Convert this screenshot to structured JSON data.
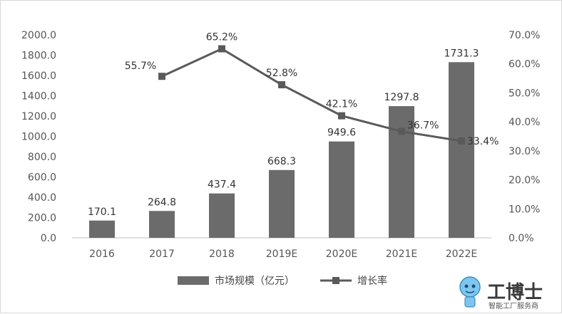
{
  "chart_data": {
    "type": "bar",
    "categories": [
      "2016",
      "2017",
      "2018",
      "2019E",
      "2020E",
      "2021E",
      "2022E"
    ],
    "series": [
      {
        "name": "市场规模（亿元）",
        "type": "bar",
        "axis": "left",
        "values": [
          170.1,
          264.8,
          437.4,
          668.3,
          949.6,
          1297.8,
          1731.3
        ],
        "labels": [
          "170.1",
          "264.8",
          "437.4",
          "668.3",
          "949.6",
          "1297.8",
          "1731.3"
        ],
        "color": "#6b6b6b"
      },
      {
        "name": "增长率",
        "type": "line",
        "axis": "right",
        "values": [
          null,
          55.7,
          65.2,
          52.8,
          42.1,
          36.7,
          33.4
        ],
        "labels": [
          "",
          "55.7%",
          "65.2%",
          "52.8%",
          "42.1%",
          "36.7%",
          "33.4%"
        ],
        "color": "#5a5a5a"
      }
    ],
    "y_left": {
      "ylim": [
        0,
        2000
      ],
      "ticks": [
        0,
        200,
        400,
        600,
        800,
        1000,
        1200,
        1400,
        1600,
        1800,
        2000
      ],
      "tick_labels": [
        "0.0",
        "200.0",
        "400.0",
        "600.0",
        "800.0",
        "1000.0",
        "1200.0",
        "1400.0",
        "1600.0",
        "1800.0",
        "2000.0"
      ]
    },
    "y_right": {
      "ylim": [
        0,
        70
      ],
      "ticks": [
        0,
        10,
        20,
        30,
        40,
        50,
        60,
        70
      ],
      "tick_labels": [
        "0.0%",
        "10.0%",
        "20.0%",
        "30.0%",
        "40.0%",
        "50.0%",
        "60.0%",
        "70.0%"
      ]
    },
    "grid": false,
    "legend": "bottom"
  },
  "watermark": {
    "title": "工博士",
    "subtitle": "智能工厂服务商"
  }
}
